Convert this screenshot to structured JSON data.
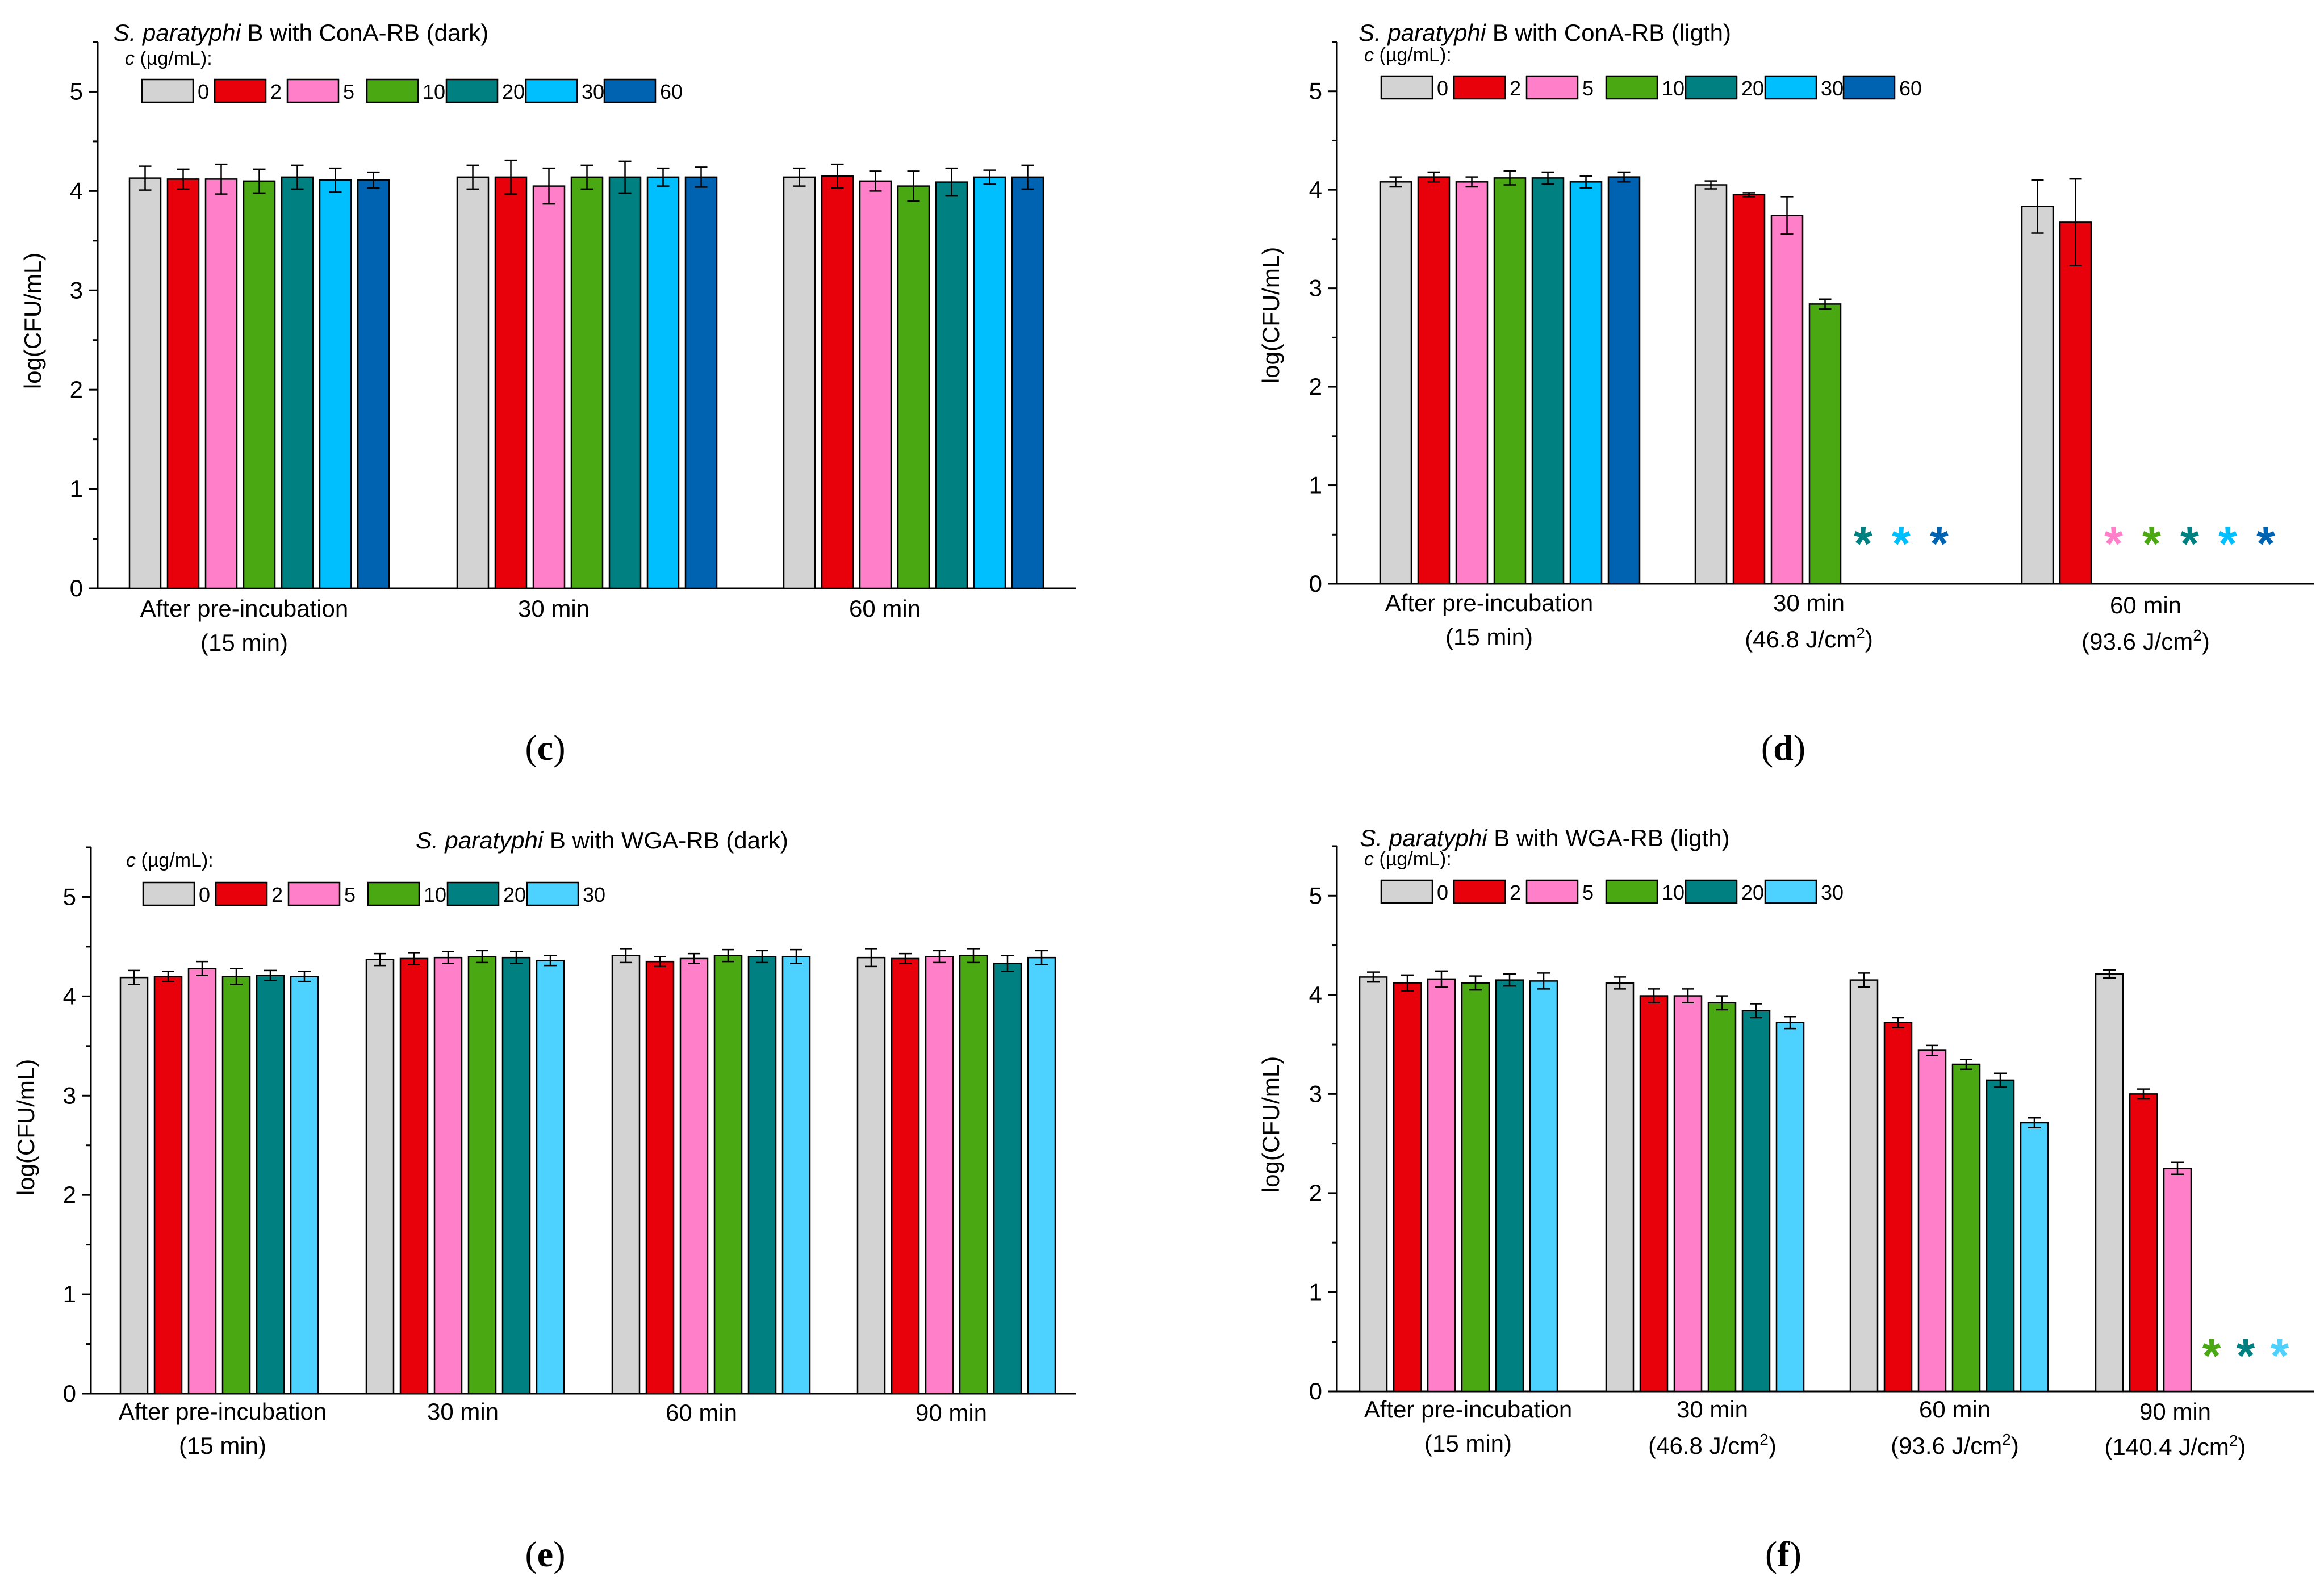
{
  "palette": {
    "c0": "#d3d3d3",
    "c2": "#e8000b",
    "c5": "#ff80c8",
    "c10": "#4aa812",
    "c20": "#008080",
    "c30": "#00bfff",
    "c60": "#0063b1",
    "c30light": "#4dd2ff"
  },
  "chart_data": [
    {
      "panel": "c",
      "type": "bar",
      "label": "(c)",
      "title_italic": "S. paratyphi",
      "title_rest": " B with ConA-RB (dark)",
      "ylabel": "log(CFU/mL)",
      "ylim": [
        0,
        5.5
      ],
      "yticks": [
        0,
        1,
        2,
        3,
        4,
        5
      ],
      "legend_title_italic": "c",
      "legend_title_rest": " (µg/mL):",
      "series_names": [
        "0",
        "2",
        "5",
        "10",
        "20",
        "30",
        "60"
      ],
      "series_colors": [
        "#d3d3d3",
        "#e8000b",
        "#ff80c8",
        "#4aa812",
        "#008080",
        "#00bfff",
        "#0063b1"
      ],
      "categories": [
        {
          "line1": "After pre-incubation",
          "line2": "(15 min)"
        },
        {
          "line1": "30 min",
          "line2": ""
        },
        {
          "line1": "60 min",
          "line2": ""
        }
      ],
      "values": [
        [
          4.13,
          4.12,
          4.12,
          4.1,
          4.14,
          4.11,
          4.11
        ],
        [
          4.14,
          4.14,
          4.05,
          4.14,
          4.14,
          4.14,
          4.14
        ],
        [
          4.14,
          4.15,
          4.1,
          4.05,
          4.09,
          4.14,
          4.14
        ]
      ],
      "errors": [
        [
          0.12,
          0.1,
          0.15,
          0.12,
          0.12,
          0.12,
          0.08
        ],
        [
          0.12,
          0.17,
          0.18,
          0.12,
          0.16,
          0.09,
          0.1
        ],
        [
          0.09,
          0.12,
          0.1,
          0.15,
          0.14,
          0.07,
          0.12
        ]
      ],
      "stars": []
    },
    {
      "panel": "d",
      "type": "bar",
      "label": "(d)",
      "title_italic": "S. paratyphi",
      "title_rest": " B with ConA-RB (ligth)",
      "ylabel": "log(CFU/mL)",
      "ylim": [
        0,
        5.5
      ],
      "yticks": [
        0,
        1,
        2,
        3,
        4,
        5
      ],
      "legend_title_italic": "c",
      "legend_title_rest": " (µg/mL):",
      "series_names": [
        "0",
        "2",
        "5",
        "10",
        "20",
        "30",
        "60"
      ],
      "series_colors": [
        "#d3d3d3",
        "#e8000b",
        "#ff80c8",
        "#4aa812",
        "#008080",
        "#00bfff",
        "#0063b1"
      ],
      "categories": [
        {
          "line1": "After pre-incubation",
          "line2": "(15 min)"
        },
        {
          "line1": "30 min",
          "line2": "(46.8 J/cm",
          "sup": "2",
          "tail": ")"
        },
        {
          "line1": "60 min",
          "line2": "(93.6 J/cm",
          "sup": "2",
          "tail": ")"
        }
      ],
      "values": [
        [
          4.08,
          4.13,
          4.08,
          4.12,
          4.12,
          4.08,
          4.13
        ],
        [
          4.05,
          3.95,
          3.74,
          2.84,
          null,
          null,
          null
        ],
        [
          3.83,
          3.67,
          null,
          null,
          null,
          null,
          null
        ]
      ],
      "errors": [
        [
          0.05,
          0.05,
          0.05,
          0.07,
          0.06,
          0.06,
          0.05
        ],
        [
          0.04,
          0.02,
          0.19,
          0.05,
          null,
          null,
          null
        ],
        [
          0.27,
          0.44,
          null,
          null,
          null,
          null,
          null
        ]
      ],
      "stars": [
        {
          "category": 1,
          "series": [
            4,
            5,
            6
          ]
        },
        {
          "category": 2,
          "series": [
            2,
            3,
            4,
            5,
            6
          ]
        }
      ]
    },
    {
      "panel": "e",
      "type": "bar",
      "label": "(e)",
      "title_italic": "S. paratyphi",
      "title_rest": " B with WGA-RB (dark)",
      "ylabel": "log(CFU/mL)",
      "ylim": [
        0,
        5.5
      ],
      "yticks": [
        0,
        1,
        2,
        3,
        4,
        5
      ],
      "legend_title_italic": "c",
      "legend_title_rest": " (µg/mL):",
      "series_names": [
        "0",
        "2",
        "5",
        "10",
        "20",
        "30"
      ],
      "series_colors": [
        "#d3d3d3",
        "#e8000b",
        "#ff80c8",
        "#4aa812",
        "#008080",
        "#4dd2ff"
      ],
      "categories": [
        {
          "line1": "After pre-incubation",
          "line2": "(15 min)"
        },
        {
          "line1": "30 min",
          "line2": ""
        },
        {
          "line1": "60 min",
          "line2": ""
        },
        {
          "line1": "90 min",
          "line2": ""
        }
      ],
      "values": [
        [
          4.19,
          4.2,
          4.28,
          4.2,
          4.21,
          4.2
        ],
        [
          4.37,
          4.38,
          4.39,
          4.4,
          4.39,
          4.36
        ],
        [
          4.41,
          4.35,
          4.38,
          4.41,
          4.4,
          4.4
        ],
        [
          4.39,
          4.38,
          4.4,
          4.41,
          4.33,
          4.39
        ]
      ],
      "errors": [
        [
          0.07,
          0.05,
          0.07,
          0.08,
          0.05,
          0.05
        ],
        [
          0.06,
          0.06,
          0.06,
          0.06,
          0.06,
          0.05
        ],
        [
          0.07,
          0.05,
          0.05,
          0.06,
          0.06,
          0.07
        ],
        [
          0.09,
          0.05,
          0.06,
          0.07,
          0.08,
          0.07
        ]
      ],
      "stars": []
    },
    {
      "panel": "f",
      "type": "bar",
      "label": "(f)",
      "title_italic": "S. paratyphi",
      "title_rest": " B with WGA-RB (ligth)",
      "ylabel": "log(CFU/mL)",
      "ylim": [
        0,
        5.5
      ],
      "yticks": [
        0,
        1,
        2,
        3,
        4,
        5
      ],
      "legend_title_italic": "c",
      "legend_title_rest": " (µg/mL):",
      "series_names": [
        "0",
        "2",
        "5",
        "10",
        "20",
        "30"
      ],
      "series_colors": [
        "#d3d3d3",
        "#e8000b",
        "#ff80c8",
        "#4aa812",
        "#008080",
        "#4dd2ff"
      ],
      "categories": [
        {
          "line1": "After pre-incubation",
          "line2": "(15 min)"
        },
        {
          "line1": "30 min",
          "line2": "(46.8 J/cm",
          "sup": "2",
          "tail": ")"
        },
        {
          "line1": "60 min",
          "line2": "(93.6 J/cm",
          "sup": "2",
          "tail": ")"
        },
        {
          "line1": "90 min",
          "line2": "(140.4 J/cm",
          "sup": "2",
          "tail": ")"
        }
      ],
      "values": [
        [
          4.18,
          4.12,
          4.16,
          4.12,
          4.15,
          4.14
        ],
        [
          4.12,
          3.99,
          3.99,
          3.92,
          3.84,
          3.72
        ],
        [
          4.15,
          3.72,
          3.44,
          3.3,
          3.14,
          2.71
        ],
        [
          4.21,
          3.0,
          2.25,
          null,
          null,
          null
        ]
      ],
      "errors": [
        [
          0.05,
          0.08,
          0.08,
          0.07,
          0.06,
          0.08
        ],
        [
          0.06,
          0.07,
          0.07,
          0.07,
          0.07,
          0.06
        ],
        [
          0.07,
          0.05,
          0.05,
          0.05,
          0.07,
          0.05
        ],
        [
          0.04,
          0.05,
          0.06,
          null,
          null,
          null
        ]
      ],
      "stars": [
        {
          "category": 3,
          "series": [
            3,
            4,
            5
          ]
        }
      ]
    }
  ]
}
